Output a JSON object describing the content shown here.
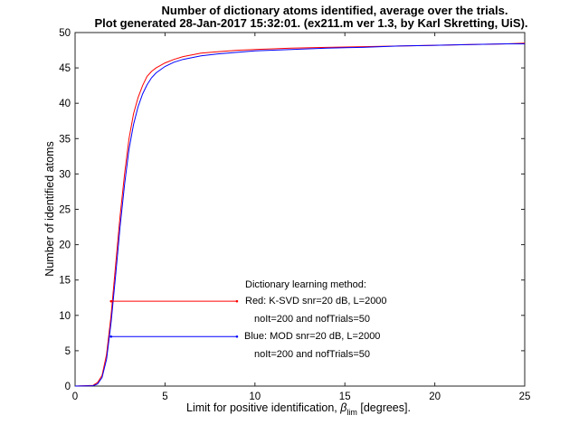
{
  "chart_data": {
    "type": "line",
    "title": "Number of dictionary atoms identified, average over the trials.",
    "subtitle": "Plot generated 28-Jan-2017 15:32:01. (ex211.m ver 1.3, by Karl Skretting, UiS).",
    "xlabel": "Limit for positive identification, ",
    "xlabel_symbol": "β",
    "xlabel_subscript": "lim",
    "xlabel_suffix": " [degrees].",
    "ylabel": "Number of identified atoms",
    "xlim": [
      0,
      25
    ],
    "ylim": [
      0,
      50
    ],
    "x_ticks": [
      "0",
      "5",
      "10",
      "15",
      "20",
      "25"
    ],
    "y_ticks": [
      "0",
      "5",
      "10",
      "15",
      "20",
      "25",
      "30",
      "35",
      "40",
      "45",
      "50"
    ],
    "grid": false,
    "colors": {
      "red": "#ff0000",
      "blue": "#0000ff"
    },
    "series": [
      {
        "color": "#ff0000",
        "x": [
          0,
          1,
          1.25,
          1.5,
          1.75,
          2,
          2.25,
          2.5,
          2.75,
          3,
          3.25,
          3.5,
          3.75,
          4,
          4.25,
          4.5,
          5,
          5.5,
          6,
          7,
          8,
          9,
          10,
          12,
          14,
          16,
          18,
          20,
          22,
          24,
          25
        ],
        "y": [
          0,
          0.1,
          0.5,
          1.5,
          4.5,
          10,
          17,
          24,
          30,
          35,
          38.5,
          40.8,
          42.5,
          43.8,
          44.5,
          45,
          45.7,
          46.2,
          46.6,
          47.1,
          47.3,
          47.5,
          47.6,
          47.8,
          47.9,
          48,
          48.1,
          48.2,
          48.3,
          48.4,
          48.5
        ]
      },
      {
        "color": "#0000ff",
        "x": [
          0,
          1,
          1.25,
          1.5,
          1.75,
          2,
          2.25,
          2.5,
          2.75,
          3,
          3.25,
          3.5,
          3.75,
          4,
          4.25,
          4.5,
          5,
          5.5,
          6,
          7,
          8,
          9,
          10,
          12,
          14,
          16,
          18,
          20,
          22,
          24,
          25
        ],
        "y": [
          0,
          0.05,
          0.3,
          1.2,
          3.8,
          9,
          15.5,
          22.5,
          28.5,
          33.5,
          37,
          39.5,
          41.3,
          42.6,
          43.6,
          44.3,
          45.2,
          45.8,
          46.2,
          46.7,
          47,
          47.2,
          47.4,
          47.6,
          47.8,
          47.9,
          48.1,
          48.2,
          48.3,
          48.4,
          48.4
        ]
      }
    ],
    "legend_lines": [
      {
        "color": "#ff0000",
        "y": 12,
        "x_start": 2,
        "x_end": 9
      },
      {
        "color": "#0000ff",
        "y": 7,
        "x_start": 2,
        "x_end": 9
      }
    ],
    "annotations": [
      "Dictionary learning method:",
      "Red: K-SVD snr=20 dB, L=2000",
      "noIt=200 and nofTrials=50",
      "Blue: MOD snr=20 dB, L=2000",
      "noIt=200 and nofTrials=50"
    ]
  }
}
